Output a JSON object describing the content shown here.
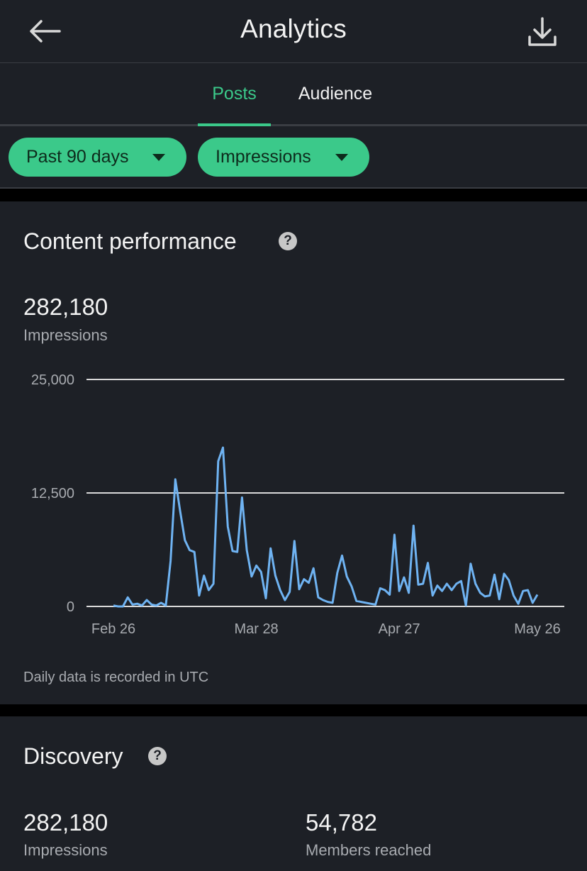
{
  "header": {
    "title": "Analytics",
    "back_icon": "arrow-left-icon",
    "download_icon": "download-icon"
  },
  "tabs": [
    {
      "label": "Posts",
      "active": true
    },
    {
      "label": "Audience",
      "active": false
    }
  ],
  "filters": {
    "range": "Past 90 days",
    "metric": "Impressions"
  },
  "content_performance": {
    "title": "Content performance",
    "total": "282,180",
    "total_label": "Impressions",
    "note": "Daily data is recorded in UTC"
  },
  "discovery": {
    "title": "Discovery",
    "stats": [
      {
        "value": "282,180",
        "label": "Impressions"
      },
      {
        "value": "54,782",
        "label": "Members reached"
      }
    ]
  },
  "colors": {
    "accent": "#3bc98a",
    "line": "#6fb3f2",
    "panel": "#1d2026",
    "muted_text": "#a8abb0"
  },
  "chart_data": {
    "type": "line",
    "ylim": [
      0,
      25000
    ],
    "y_ticks": [
      "25,000",
      "12,500",
      "0"
    ],
    "y_tick_values": [
      25000,
      12500,
      0
    ],
    "x_ticks": [
      "Feb 26",
      "Mar 28",
      "Apr 27",
      "May 26"
    ],
    "x_tick_days": [
      0,
      30,
      60,
      89
    ],
    "grid": true,
    "series": [
      {
        "values": [
          100,
          0,
          0,
          1000,
          200,
          300,
          100,
          700,
          200,
          100,
          400,
          100,
          5000,
          14000,
          10500,
          7300,
          6200,
          6000,
          1200,
          3400,
          1800,
          2500,
          16000,
          17500,
          8800,
          6100,
          6000,
          12000,
          6200,
          3300,
          4500,
          3800,
          900,
          6400,
          3400,
          1800,
          700,
          1600,
          7200,
          1900,
          3000,
          2600,
          4200,
          1000,
          700,
          500,
          400,
          3700,
          5600,
          3300,
          2200,
          600,
          500,
          400,
          300,
          200,
          2000,
          1800,
          1300,
          7900,
          1700,
          3200,
          1500,
          8900,
          2400,
          2500,
          4800,
          1200,
          2300,
          1700,
          2500,
          1800,
          2500,
          2800,
          100,
          4700,
          2500,
          1500,
          1100,
          1200,
          3500,
          800,
          3600,
          2900,
          1200,
          300,
          1700,
          1800,
          400,
          1300
        ]
      }
    ]
  }
}
